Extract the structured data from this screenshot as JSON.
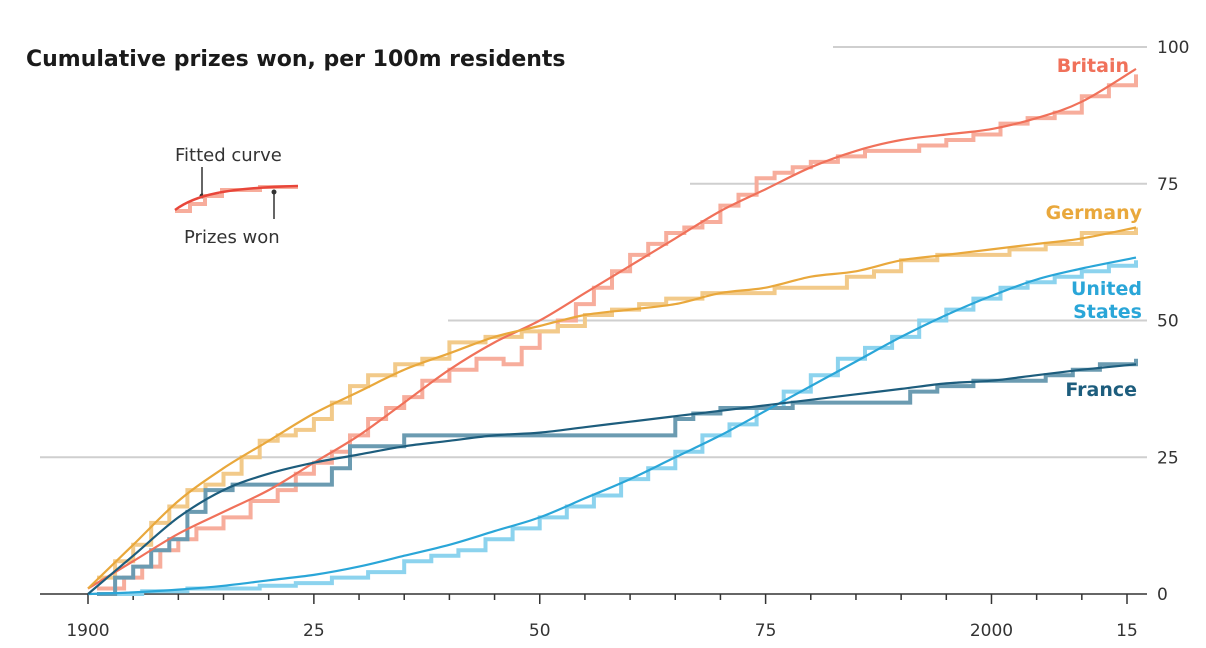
{
  "chart_data": {
    "type": "line",
    "title": "Cumulative prizes won, per 100m residents",
    "xlabel": "",
    "ylabel": "",
    "xlim": [
      1898,
      2017
    ],
    "ylim": [
      0,
      100
    ],
    "y_ticks": [
      {
        "value": 0,
        "label": "0"
      },
      {
        "value": 25,
        "label": "25"
      },
      {
        "value": 50,
        "label": "50"
      },
      {
        "value": 75,
        "label": "75"
      },
      {
        "value": 100,
        "label": "100"
      }
    ],
    "x_ticks": [
      {
        "value": 1900,
        "label": "1900"
      },
      {
        "value": 1925,
        "label": "25"
      },
      {
        "value": 1950,
        "label": "50"
      },
      {
        "value": 1975,
        "label": "75"
      },
      {
        "value": 2000,
        "label": "2000"
      },
      {
        "value": 2015,
        "label": "15"
      }
    ],
    "legend": {
      "fitted_label": "Fitted curve",
      "prizes_label": "Prizes won"
    },
    "series": [
      {
        "name": "Britain",
        "label_lines": [
          "Britain"
        ],
        "color": "#f0715a",
        "step_color": "#f7ad9c",
        "prizes": [
          [
            1901,
            1
          ],
          [
            1904,
            3
          ],
          [
            1906,
            5
          ],
          [
            1908,
            8
          ],
          [
            1910,
            10
          ],
          [
            1912,
            12
          ],
          [
            1915,
            14
          ],
          [
            1918,
            17
          ],
          [
            1921,
            19
          ],
          [
            1923,
            22
          ],
          [
            1925,
            24
          ],
          [
            1927,
            26
          ],
          [
            1929,
            29
          ],
          [
            1931,
            32
          ],
          [
            1933,
            34
          ],
          [
            1935,
            36
          ],
          [
            1937,
            39
          ],
          [
            1940,
            41
          ],
          [
            1943,
            43
          ],
          [
            1946,
            42
          ],
          [
            1948,
            45
          ],
          [
            1950,
            48
          ],
          [
            1952,
            50
          ],
          [
            1954,
            53
          ],
          [
            1956,
            56
          ],
          [
            1958,
            59
          ],
          [
            1960,
            62
          ],
          [
            1962,
            64
          ],
          [
            1964,
            66
          ],
          [
            1966,
            67
          ],
          [
            1968,
            68
          ],
          [
            1970,
            71
          ],
          [
            1972,
            73
          ],
          [
            1974,
            76
          ],
          [
            1976,
            77
          ],
          [
            1978,
            78
          ],
          [
            1980,
            79
          ],
          [
            1983,
            80
          ],
          [
            1986,
            81
          ],
          [
            1989,
            81
          ],
          [
            1992,
            82
          ],
          [
            1995,
            83
          ],
          [
            1998,
            84
          ],
          [
            2001,
            86
          ],
          [
            2004,
            87
          ],
          [
            2007,
            88
          ],
          [
            2010,
            91
          ],
          [
            2013,
            93
          ],
          [
            2016,
            95
          ]
        ],
        "fitted": [
          [
            1900,
            1
          ],
          [
            1905,
            6
          ],
          [
            1910,
            11
          ],
          [
            1915,
            15
          ],
          [
            1920,
            19
          ],
          [
            1925,
            24
          ],
          [
            1930,
            29
          ],
          [
            1935,
            35
          ],
          [
            1940,
            41
          ],
          [
            1945,
            46
          ],
          [
            1950,
            50
          ],
          [
            1955,
            55
          ],
          [
            1960,
            60
          ],
          [
            1965,
            65
          ],
          [
            1970,
            70
          ],
          [
            1975,
            74
          ],
          [
            1980,
            78
          ],
          [
            1985,
            81
          ],
          [
            1990,
            83
          ],
          [
            1995,
            84
          ],
          [
            2000,
            85
          ],
          [
            2005,
            87
          ],
          [
            2010,
            90
          ],
          [
            2016,
            96
          ]
        ]
      },
      {
        "name": "Germany",
        "label_lines": [
          "Germany"
        ],
        "color": "#e9a83c",
        "step_color": "#f2ca8a",
        "prizes": [
          [
            1901,
            3
          ],
          [
            1903,
            6
          ],
          [
            1905,
            9
          ],
          [
            1907,
            13
          ],
          [
            1909,
            16
          ],
          [
            1911,
            19
          ],
          [
            1913,
            20
          ],
          [
            1915,
            22
          ],
          [
            1917,
            25
          ],
          [
            1919,
            28
          ],
          [
            1921,
            29
          ],
          [
            1923,
            30
          ],
          [
            1925,
            32
          ],
          [
            1927,
            35
          ],
          [
            1929,
            38
          ],
          [
            1931,
            40
          ],
          [
            1934,
            42
          ],
          [
            1937,
            43
          ],
          [
            1940,
            46
          ],
          [
            1944,
            47
          ],
          [
            1948,
            48
          ],
          [
            1952,
            49
          ],
          [
            1955,
            51
          ],
          [
            1958,
            52
          ],
          [
            1961,
            53
          ],
          [
            1964,
            54
          ],
          [
            1968,
            55
          ],
          [
            1972,
            55
          ],
          [
            1976,
            56
          ],
          [
            1980,
            56
          ],
          [
            1984,
            58
          ],
          [
            1987,
            59
          ],
          [
            1990,
            61
          ],
          [
            1994,
            62
          ],
          [
            1998,
            62
          ],
          [
            2002,
            63
          ],
          [
            2006,
            64
          ],
          [
            2010,
            66
          ],
          [
            2016,
            67
          ]
        ],
        "fitted": [
          [
            1900,
            1
          ],
          [
            1905,
            9
          ],
          [
            1910,
            17
          ],
          [
            1915,
            23
          ],
          [
            1920,
            28
          ],
          [
            1925,
            33
          ],
          [
            1930,
            37
          ],
          [
            1935,
            41
          ],
          [
            1940,
            44
          ],
          [
            1945,
            47
          ],
          [
            1950,
            49
          ],
          [
            1955,
            51
          ],
          [
            1960,
            52
          ],
          [
            1965,
            53
          ],
          [
            1970,
            55
          ],
          [
            1975,
            56
          ],
          [
            1980,
            58
          ],
          [
            1985,
            59
          ],
          [
            1990,
            61
          ],
          [
            1995,
            62
          ],
          [
            2000,
            63
          ],
          [
            2005,
            64
          ],
          [
            2010,
            65
          ],
          [
            2016,
            67
          ]
        ]
      },
      {
        "name": "United States",
        "label_lines": [
          "United",
          "States"
        ],
        "color": "#2aa6d8",
        "step_color": "#8cd3ee",
        "prizes": [
          [
            1901,
            0
          ],
          [
            1906,
            0.5
          ],
          [
            1911,
            1
          ],
          [
            1915,
            1
          ],
          [
            1919,
            1.5
          ],
          [
            1923,
            2
          ],
          [
            1927,
            3
          ],
          [
            1931,
            4
          ],
          [
            1935,
            6
          ],
          [
            1938,
            7
          ],
          [
            1941,
            8
          ],
          [
            1944,
            10
          ],
          [
            1947,
            12
          ],
          [
            1950,
            14
          ],
          [
            1953,
            16
          ],
          [
            1956,
            18
          ],
          [
            1959,
            21
          ],
          [
            1962,
            23
          ],
          [
            1965,
            26
          ],
          [
            1968,
            29
          ],
          [
            1971,
            31
          ],
          [
            1974,
            34
          ],
          [
            1977,
            37
          ],
          [
            1980,
            40
          ],
          [
            1983,
            43
          ],
          [
            1986,
            45
          ],
          [
            1989,
            47
          ],
          [
            1992,
            50
          ],
          [
            1995,
            52
          ],
          [
            1998,
            54
          ],
          [
            2001,
            56
          ],
          [
            2004,
            57
          ],
          [
            2007,
            58
          ],
          [
            2010,
            59
          ],
          [
            2013,
            60
          ],
          [
            2016,
            61
          ]
        ],
        "fitted": [
          [
            1900,
            0
          ],
          [
            1905,
            0.3
          ],
          [
            1910,
            0.8
          ],
          [
            1915,
            1.5
          ],
          [
            1920,
            2.5
          ],
          [
            1925,
            3.5
          ],
          [
            1930,
            5
          ],
          [
            1935,
            7
          ],
          [
            1940,
            9
          ],
          [
            1945,
            11.5
          ],
          [
            1950,
            14
          ],
          [
            1955,
            17.5
          ],
          [
            1960,
            21
          ],
          [
            1965,
            25
          ],
          [
            1970,
            29
          ],
          [
            1975,
            33.5
          ],
          [
            1980,
            38
          ],
          [
            1985,
            42.5
          ],
          [
            1990,
            47
          ],
          [
            1995,
            51
          ],
          [
            2000,
            54.5
          ],
          [
            2005,
            57.5
          ],
          [
            2010,
            59.5
          ],
          [
            2016,
            61.5
          ]
        ]
      },
      {
        "name": "France",
        "label_lines": [
          "France"
        ],
        "color": "#1d5d7d",
        "step_color": "#6b9bb1",
        "prizes": [
          [
            1901,
            0
          ],
          [
            1903,
            3
          ],
          [
            1905,
            5
          ],
          [
            1907,
            8
          ],
          [
            1909,
            10
          ],
          [
            1911,
            15
          ],
          [
            1913,
            19
          ],
          [
            1916,
            20
          ],
          [
            1919,
            20
          ],
          [
            1922,
            20
          ],
          [
            1925,
            20
          ],
          [
            1927,
            23
          ],
          [
            1929,
            27
          ],
          [
            1932,
            27
          ],
          [
            1935,
            29
          ],
          [
            1938,
            29
          ],
          [
            1941,
            29
          ],
          [
            1944,
            29
          ],
          [
            1947,
            29
          ],
          [
            1950,
            29
          ],
          [
            1954,
            29
          ],
          [
            1958,
            29
          ],
          [
            1962,
            29
          ],
          [
            1965,
            32
          ],
          [
            1967,
            33
          ],
          [
            1970,
            34
          ],
          [
            1974,
            34
          ],
          [
            1978,
            35
          ],
          [
            1982,
            35
          ],
          [
            1986,
            35
          ],
          [
            1989,
            35
          ],
          [
            1991,
            37
          ],
          [
            1994,
            38
          ],
          [
            1998,
            39
          ],
          [
            2002,
            39
          ],
          [
            2006,
            40
          ],
          [
            2009,
            41
          ],
          [
            2012,
            42
          ],
          [
            2016,
            43
          ]
        ],
        "fitted": [
          [
            1900,
            0
          ],
          [
            1905,
            7
          ],
          [
            1910,
            14
          ],
          [
            1915,
            19
          ],
          [
            1920,
            22
          ],
          [
            1925,
            24
          ],
          [
            1930,
            25.5
          ],
          [
            1935,
            27
          ],
          [
            1940,
            28
          ],
          [
            1945,
            29
          ],
          [
            1950,
            29.5
          ],
          [
            1955,
            30.5
          ],
          [
            1960,
            31.5
          ],
          [
            1965,
            32.5
          ],
          [
            1970,
            33.5
          ],
          [
            1975,
            34.5
          ],
          [
            1980,
            35.5
          ],
          [
            1985,
            36.5
          ],
          [
            1990,
            37.5
          ],
          [
            1995,
            38.5
          ],
          [
            2000,
            39
          ],
          [
            2005,
            40
          ],
          [
            2010,
            41
          ],
          [
            2016,
            42
          ]
        ]
      }
    ]
  }
}
